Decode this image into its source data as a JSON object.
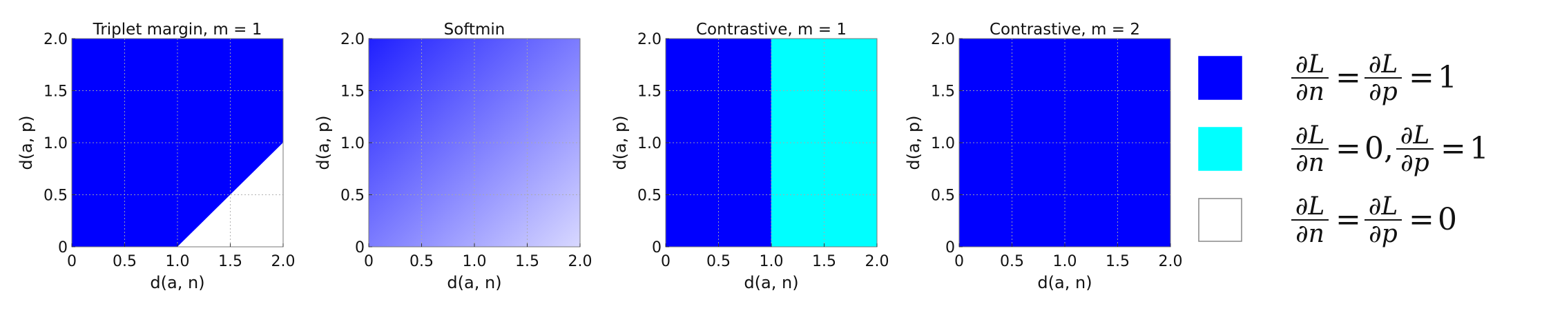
{
  "chart_data": [
    {
      "type": "heatmap",
      "title": "Triplet margin, m = 1",
      "xlabel": "d(a, n)",
      "ylabel": "d(a, p)",
      "xlim": [
        0,
        2.0
      ],
      "ylim": [
        0,
        2.0
      ],
      "xticks": [
        "0",
        "0.5",
        "1.0",
        "1.5",
        "2.0"
      ],
      "yticks": [
        "0",
        "0.5",
        "1.0",
        "1.5",
        "2.0"
      ],
      "grid": true,
      "region_rule": "dark blue where d(a,p) > d(a,n) - 1, white where d(a,p) <= d(a,n) - 1",
      "regions": [
        {
          "color": "#0000ff",
          "polygon": [
            [
              0,
              0
            ],
            [
              1.0,
              0
            ],
            [
              2.0,
              1.0
            ],
            [
              2.0,
              2.0
            ],
            [
              0,
              2.0
            ]
          ]
        },
        {
          "color": "#ffffff",
          "polygon": [
            [
              1.0,
              0
            ],
            [
              2.0,
              0
            ],
            [
              2.0,
              1.0
            ]
          ]
        }
      ]
    },
    {
      "type": "heatmap",
      "title": "Softmin",
      "xlabel": "d(a, n)",
      "ylabel": "d(a, p)",
      "xlim": [
        0,
        2.0
      ],
      "ylim": [
        0,
        2.0
      ],
      "xticks": [
        "0",
        "0.5",
        "1.0",
        "1.5",
        "2.0"
      ],
      "yticks": [
        "0",
        "0.5",
        "1.0",
        "1.5",
        "2.0"
      ],
      "grid": true,
      "region_rule": "continuous gradient, strongest blue at top-left, lightest at bottom-right",
      "gradient": {
        "strong_color": "#2020ff",
        "light_color": "#d8d8ff",
        "from": [
          0,
          2.0
        ],
        "to": [
          2.0,
          0
        ]
      }
    },
    {
      "type": "heatmap",
      "title": "Contrastive, m = 1",
      "xlabel": "d(a, n)",
      "ylabel": "d(a, p)",
      "xlim": [
        0,
        2.0
      ],
      "ylim": [
        0,
        2.0
      ],
      "xticks": [
        "0",
        "0.5",
        "1.0",
        "1.5",
        "2.0"
      ],
      "yticks": [
        "0",
        "0.5",
        "1.0",
        "1.5",
        "2.0"
      ],
      "grid": true,
      "region_rule": "dark blue for d(a,n) < 1, cyan for d(a,n) >= 1",
      "regions": [
        {
          "color": "#0000ff",
          "polygon": [
            [
              0,
              0
            ],
            [
              1.0,
              0
            ],
            [
              1.0,
              2.0
            ],
            [
              0,
              2.0
            ]
          ]
        },
        {
          "color": "#00ffff",
          "polygon": [
            [
              1.0,
              0
            ],
            [
              2.0,
              0
            ],
            [
              2.0,
              2.0
            ],
            [
              1.0,
              2.0
            ]
          ]
        }
      ]
    },
    {
      "type": "heatmap",
      "title": "Contrastive, m = 2",
      "xlabel": "d(a, n)",
      "ylabel": "d(a, p)",
      "xlim": [
        0,
        2.0
      ],
      "ylim": [
        0,
        2.0
      ],
      "xticks": [
        "0",
        "0.5",
        "1.0",
        "1.5",
        "2.0"
      ],
      "yticks": [
        "0",
        "0.5",
        "1.0",
        "1.5",
        "2.0"
      ],
      "grid": true,
      "region_rule": "entire area dark blue",
      "regions": [
        {
          "color": "#0000ff",
          "polygon": [
            [
              0,
              0
            ],
            [
              2.0,
              0
            ],
            [
              2.0,
              2.0
            ],
            [
              0,
              2.0
            ]
          ]
        }
      ]
    }
  ],
  "legend": {
    "placement": "right",
    "items": [
      {
        "color": "#0000ff",
        "dL_dn": "1",
        "dL_dp": "1",
        "form": "equal"
      },
      {
        "color": "#00ffff",
        "dL_dn": "0",
        "dL_dp": "1",
        "form": "pair"
      },
      {
        "color": "#ffffff",
        "dL_dn": "0",
        "dL_dp": "0",
        "form": "equal"
      }
    ]
  }
}
